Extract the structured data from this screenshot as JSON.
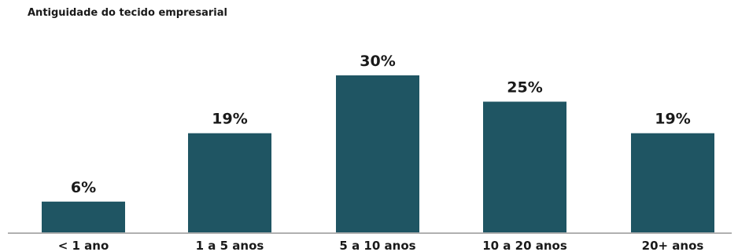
{
  "chart_data": {
    "type": "bar",
    "title": "Antiguidade  do tecido empresarial",
    "xlabel": "",
    "ylabel": "",
    "categories": [
      "<  1 ano",
      "1 a 5 anos",
      "5 a 10 anos",
      "10 a 20 anos",
      "20+ anos"
    ],
    "values": [
      6,
      19,
      30,
      25,
      19
    ],
    "value_labels": [
      "6%",
      "19%",
      "30%",
      "25%",
      "19%"
    ],
    "unit": "%",
    "ylim": [
      0,
      30
    ],
    "grid": false,
    "legend": "none",
    "bar_color": "#1f5563",
    "axis_color": "#b0b0b0"
  }
}
